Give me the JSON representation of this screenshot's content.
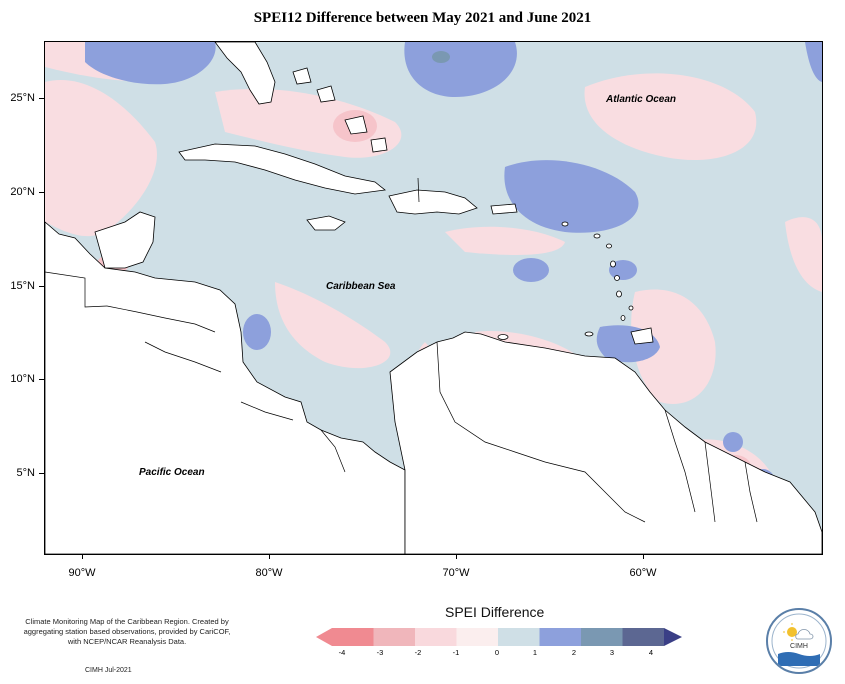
{
  "title": "SPEI12 Difference between May 2021 and June 2021",
  "axes": {
    "latitude_labels": [
      "25°N",
      "20°N",
      "15°N",
      "10°N",
      "5°N"
    ],
    "longitude_labels": [
      "90°W",
      "80°W",
      "70°W",
      "60°W"
    ]
  },
  "map_labels": {
    "atlantic": "Atlantic Ocean",
    "caribbean": "Caribbean Sea",
    "pacific": "Pacific Ocean"
  },
  "footer": {
    "description": "Climate Monitoring Map of the Caribbean Region. Created by aggregating station based observations, provided by CariCOF, with NCEP/NCAR Reanalysis Data.",
    "credit": "CIMH Jul-2021"
  },
  "legend": {
    "title": "SPEI Difference",
    "ticks": [
      "-4",
      "-3",
      "-2",
      "-1",
      "0",
      "1",
      "2",
      "3",
      "4"
    ],
    "colors": [
      "#f08a91",
      "#f0b6bb",
      "#f9d9dd",
      "#fbeeee",
      "#cfdfe6",
      "#8da0dc",
      "#7a98b2",
      "#5c6792",
      "#3a3f86"
    ]
  },
  "colors": {
    "wet": "#8da0dc",
    "dry": "#f9dde1",
    "neutral": "#cfdfe6"
  },
  "logo": {
    "text": "CIMH",
    "ring_text": "Caribbean Institute for Meteorology and Hydrology"
  }
}
